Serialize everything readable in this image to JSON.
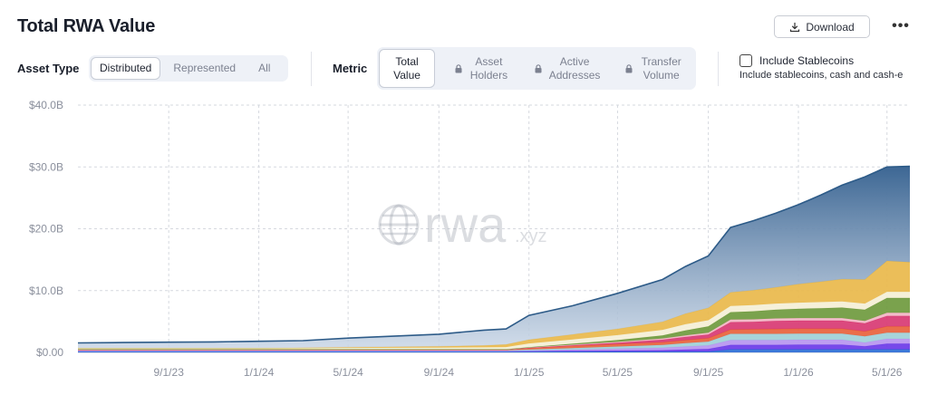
{
  "header": {
    "title": "Total RWA Value",
    "download_label": "Download",
    "more_label": "•••"
  },
  "filters": {
    "asset_type_label": "Asset Type",
    "asset_type_options": [
      "Distributed",
      "Represented",
      "All"
    ],
    "asset_type_selected": "Distributed",
    "metric_label": "Metric",
    "metric_options": [
      {
        "label": "Total Value",
        "locked": false
      },
      {
        "label": "Asset Holders",
        "locked": true
      },
      {
        "label": "Active Addresses",
        "locked": true
      },
      {
        "label": "Transfer Volume",
        "locked": true
      }
    ],
    "metric_selected": "Total Value",
    "stablecoins_label": "Include Stablecoins",
    "stablecoins_desc": "Include stablecoins, cash and cash-e",
    "stablecoins_checked": false
  },
  "watermark": {
    "main": "rwa",
    "suffix": ".xyz"
  },
  "chart_data": {
    "type": "area",
    "stacked": true,
    "x_start": "2023-05-01",
    "x_end": "2026-06-01",
    "x_ticks": [
      "9/1/23",
      "1/1/24",
      "5/1/24",
      "9/1/24",
      "1/1/25",
      "5/1/25",
      "9/1/25",
      "1/1/26",
      "5/1/26"
    ],
    "y_ticks": [
      "$0.00",
      "$10.0B",
      "$20.0B",
      "$30.0B",
      "$40.0B"
    ],
    "ylim": [
      0,
      40
    ],
    "grid": true,
    "x": [
      "2023-05",
      "2023-07",
      "2023-09",
      "2023-11",
      "2024-01",
      "2024-03",
      "2024-05",
      "2024-07",
      "2024-09",
      "2024-11",
      "2024-12",
      "2025-01",
      "2025-03",
      "2025-05",
      "2025-07",
      "2025-08",
      "2025-09",
      "2025-10",
      "2025-11",
      "2025-12",
      "2026-01",
      "2026-02",
      "2026-03",
      "2026-04",
      "2026-05",
      "2026-06"
    ],
    "series": [
      {
        "color": "#2f6fd6",
        "values": [
          0.15,
          0.15,
          0.15,
          0.15,
          0.15,
          0.15,
          0.15,
          0.15,
          0.15,
          0.15,
          0.15,
          0.15,
          0.15,
          0.15,
          0.15,
          0.15,
          0.15,
          0.5,
          0.5,
          0.5,
          0.5,
          0.5,
          0.5,
          0.5,
          0.5,
          0.5
        ]
      },
      {
        "color": "#6b39e8",
        "values": [
          0.05,
          0.05,
          0.05,
          0.05,
          0.05,
          0.05,
          0.05,
          0.05,
          0.05,
          0.05,
          0.05,
          0.05,
          0.1,
          0.15,
          0.2,
          0.3,
          0.4,
          0.7,
          0.7,
          0.7,
          0.75,
          0.75,
          0.75,
          0.5,
          0.9,
          0.9
        ]
      },
      {
        "color": "#b795f0",
        "values": [
          0.05,
          0.05,
          0.05,
          0.05,
          0.05,
          0.05,
          0.05,
          0.05,
          0.05,
          0.05,
          0.05,
          0.1,
          0.2,
          0.3,
          0.4,
          0.5,
          0.6,
          0.8,
          0.8,
          0.8,
          0.8,
          0.8,
          0.8,
          0.6,
          0.8,
          0.8
        ]
      },
      {
        "color": "#9fd0d8",
        "values": [
          0.1,
          0.1,
          0.1,
          0.1,
          0.1,
          0.1,
          0.1,
          0.1,
          0.1,
          0.1,
          0.1,
          0.15,
          0.25,
          0.35,
          0.45,
          0.55,
          0.6,
          1.0,
          1.0,
          1.0,
          1.0,
          1.0,
          1.0,
          1.0,
          1.0,
          1.0
        ]
      },
      {
        "color": "#e8623c",
        "values": [
          0.05,
          0.05,
          0.05,
          0.05,
          0.05,
          0.05,
          0.05,
          0.05,
          0.05,
          0.05,
          0.05,
          0.25,
          0.35,
          0.4,
          0.45,
          0.5,
          0.55,
          0.7,
          0.75,
          0.8,
          0.8,
          0.8,
          0.8,
          0.8,
          1.0,
          1.0
        ]
      },
      {
        "color": "#d83a73",
        "values": [
          0.05,
          0.05,
          0.05,
          0.05,
          0.05,
          0.05,
          0.05,
          0.05,
          0.05,
          0.05,
          0.05,
          0.05,
          0.1,
          0.2,
          0.4,
          0.5,
          0.6,
          1.2,
          1.2,
          1.3,
          1.3,
          1.3,
          1.3,
          1.3,
          1.7,
          1.7
        ]
      },
      {
        "color": "#f2b6c6",
        "values": [
          0.05,
          0.05,
          0.05,
          0.05,
          0.05,
          0.05,
          0.05,
          0.05,
          0.05,
          0.05,
          0.05,
          0.05,
          0.1,
          0.15,
          0.2,
          0.25,
          0.3,
          0.4,
          0.4,
          0.4,
          0.4,
          0.4,
          0.4,
          0.4,
          0.5,
          0.5
        ]
      },
      {
        "color": "#6f9a3e",
        "values": [
          0.02,
          0.02,
          0.02,
          0.02,
          0.02,
          0.02,
          0.02,
          0.02,
          0.02,
          0.02,
          0.02,
          0.05,
          0.15,
          0.3,
          0.5,
          0.8,
          1.0,
          1.2,
          1.3,
          1.4,
          1.5,
          1.6,
          1.7,
          1.8,
          2.4,
          2.4
        ]
      },
      {
        "color": "#f4efd6",
        "values": [
          0.15,
          0.15,
          0.15,
          0.15,
          0.15,
          0.18,
          0.2,
          0.22,
          0.25,
          0.3,
          0.35,
          0.6,
          0.7,
          0.8,
          0.9,
          1.0,
          1.0,
          1.0,
          1.0,
          1.0,
          1.0,
          1.0,
          1.0,
          1.0,
          1.0,
          1.0
        ]
      },
      {
        "color": "#e9b94b",
        "values": [
          0.0,
          0.0,
          0.0,
          0.0,
          0.0,
          0.05,
          0.1,
          0.15,
          0.2,
          0.3,
          0.4,
          0.6,
          0.8,
          1.0,
          1.3,
          1.7,
          2.0,
          2.2,
          2.4,
          2.6,
          3.0,
          3.3,
          3.6,
          3.9,
          5.0,
          4.8
        ]
      },
      {
        "color": "#3d6794",
        "values": [
          0.87,
          0.93,
          0.98,
          1.03,
          1.13,
          1.15,
          1.5,
          1.73,
          1.98,
          2.48,
          2.53,
          3.95,
          4.65,
          5.75,
          6.85,
          7.65,
          8.4,
          10.5,
          11.25,
          12.0,
          12.85,
          14.05,
          15.2,
          16.6,
          15.2,
          15.5
        ]
      }
    ]
  }
}
